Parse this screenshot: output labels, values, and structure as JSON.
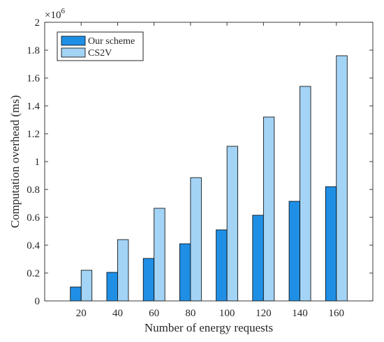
{
  "chart_data": {
    "type": "bar",
    "categories": [
      "20",
      "40",
      "60",
      "80",
      "100",
      "120",
      "140",
      "160"
    ],
    "series": [
      {
        "name": "Our scheme",
        "values": [
          0.1,
          0.205,
          0.305,
          0.41,
          0.51,
          0.615,
          0.715,
          0.82
        ],
        "color": "#1f8fe6"
      },
      {
        "name": "CS2V",
        "values": [
          0.22,
          0.44,
          0.665,
          0.885,
          1.11,
          1.32,
          1.54,
          1.76
        ],
        "color": "#a3d3f5"
      }
    ],
    "xlabel": "Number of energy requests",
    "ylabel": "Computation overhead (ms)",
    "ylim": [
      0,
      2
    ],
    "yticks": [
      "0",
      "0.2",
      "0.4",
      "0.6",
      "0.8",
      "1",
      "1.2",
      "1.4",
      "1.6",
      "1.8",
      "2"
    ],
    "y_multiplier": {
      "base": "×10",
      "exponent": "6"
    },
    "legend_position": "top-left",
    "grid": false
  }
}
